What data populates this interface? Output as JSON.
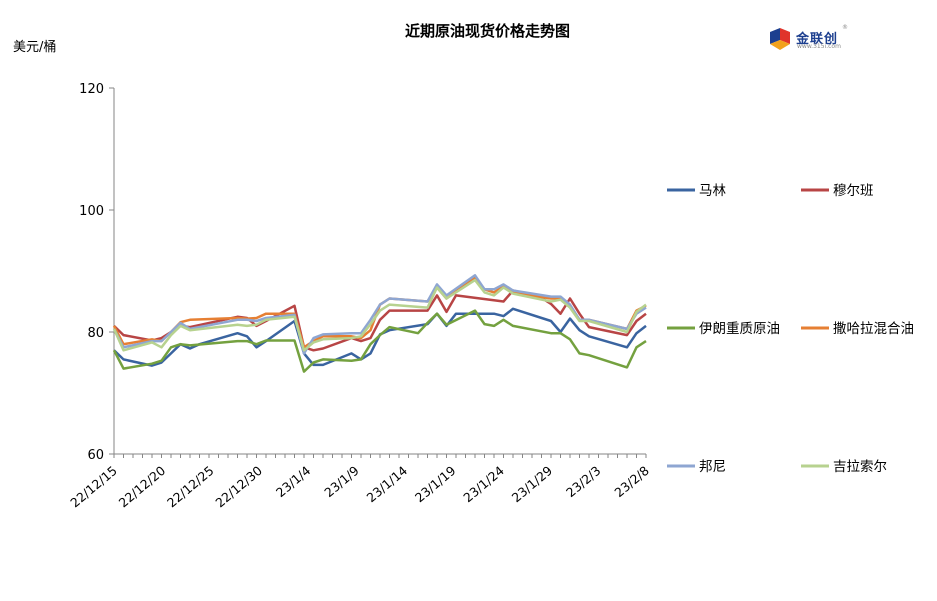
{
  "chart_data": {
    "type": "line",
    "title": "近期原油现货价格走势图",
    "ylabel": "美元/桶",
    "ylim": [
      60,
      120
    ],
    "yticks": [
      60,
      80,
      100,
      120
    ],
    "grid": false,
    "legend_placement": "right",
    "x_tick_labels": [
      "22/12/15",
      "22/12/20",
      "22/12/25",
      "22/12/30",
      "23/1/4",
      "23/1/9",
      "23/1/14",
      "23/1/19",
      "23/1/24",
      "23/1/29",
      "23/2/3",
      "23/2/8"
    ],
    "series": [
      {
        "name": "马林",
        "color": "#3a64a0",
        "values": [
          [
            0,
            77
          ],
          [
            1,
            75.5
          ],
          [
            4,
            74.5
          ],
          [
            5,
            75
          ],
          [
            6,
            76.5
          ],
          [
            7,
            78
          ],
          [
            8,
            77.3
          ],
          [
            9,
            78
          ],
          [
            13,
            79.8
          ],
          [
            14,
            79.3
          ],
          [
            15,
            77.5
          ],
          [
            16,
            78.5
          ],
          [
            19,
            81.8
          ],
          [
            20,
            76.5
          ],
          [
            21,
            74.6
          ],
          [
            22,
            74.6
          ],
          [
            25,
            76.5
          ],
          [
            26,
            75.5
          ],
          [
            27,
            76.5
          ],
          [
            28,
            79.6
          ],
          [
            29,
            80.3
          ],
          [
            33,
            81.3
          ],
          [
            34,
            83
          ],
          [
            35,
            81
          ],
          [
            36,
            83
          ],
          [
            39,
            83
          ],
          [
            40,
            83
          ],
          [
            41,
            82.6
          ],
          [
            42,
            83.8
          ],
          [
            46,
            81.8
          ],
          [
            47,
            80
          ],
          [
            48,
            82.2
          ],
          [
            49,
            80.3
          ],
          [
            50,
            79.3
          ],
          [
            54,
            77.5
          ],
          [
            55,
            79.8
          ],
          [
            56,
            81
          ]
        ]
      },
      {
        "name": "穆尔班",
        "color": "#b84545",
        "values": [
          [
            0,
            81
          ],
          [
            1,
            79.5
          ],
          [
            4,
            78.6
          ],
          [
            5,
            79
          ],
          [
            6,
            80
          ],
          [
            7,
            81
          ],
          [
            8,
            80.8
          ],
          [
            13,
            82.5
          ],
          [
            14,
            82.3
          ],
          [
            15,
            81
          ],
          [
            16,
            81.8
          ],
          [
            19,
            84.3
          ],
          [
            20,
            77.5
          ],
          [
            21,
            77
          ],
          [
            22,
            77.3
          ],
          [
            25,
            79
          ],
          [
            26,
            78.5
          ],
          [
            27,
            79
          ],
          [
            28,
            82
          ],
          [
            29,
            83.5
          ],
          [
            33,
            83.5
          ],
          [
            34,
            86
          ],
          [
            35,
            83.3
          ],
          [
            36,
            86
          ],
          [
            41,
            85
          ],
          [
            42,
            86.8
          ],
          [
            45,
            85.6
          ],
          [
            46,
            84.6
          ],
          [
            47,
            83
          ],
          [
            48,
            85.5
          ],
          [
            49,
            83
          ],
          [
            50,
            80.8
          ],
          [
            54,
            79.5
          ],
          [
            55,
            81.8
          ],
          [
            56,
            83
          ]
        ]
      },
      {
        "name": "伊朗重质原油",
        "color": "#74a13f",
        "values": [
          [
            0,
            77
          ],
          [
            1,
            74
          ],
          [
            4,
            74.8
          ],
          [
            5,
            75.3
          ],
          [
            6,
            77.5
          ],
          [
            7,
            78
          ],
          [
            8,
            77.8
          ],
          [
            13,
            78.5
          ],
          [
            14,
            78.5
          ],
          [
            15,
            78
          ],
          [
            16,
            78.6
          ],
          [
            19,
            78.6
          ],
          [
            20,
            73.5
          ],
          [
            21,
            75
          ],
          [
            22,
            75.5
          ],
          [
            25,
            75.3
          ],
          [
            26,
            75.5
          ],
          [
            27,
            78
          ],
          [
            28,
            79.5
          ],
          [
            29,
            80.8
          ],
          [
            32,
            79.8
          ],
          [
            33,
            81.5
          ],
          [
            34,
            83
          ],
          [
            35,
            81.2
          ],
          [
            38,
            83.5
          ],
          [
            39,
            81.3
          ],
          [
            40,
            81
          ],
          [
            41,
            82
          ],
          [
            42,
            81
          ],
          [
            46,
            79.8
          ],
          [
            47,
            79.8
          ],
          [
            48,
            78.8
          ],
          [
            49,
            76.5
          ],
          [
            50,
            76.2
          ],
          [
            54,
            74.2
          ],
          [
            55,
            77.5
          ],
          [
            56,
            78.5
          ]
        ]
      },
      {
        "name": "撒哈拉混合油",
        "color": "#e67f33",
        "values": [
          [
            0,
            81
          ],
          [
            1,
            78
          ],
          [
            4,
            78.8
          ],
          [
            5,
            78.5
          ],
          [
            6,
            80
          ],
          [
            7,
            81.6
          ],
          [
            8,
            82
          ],
          [
            13,
            82.3
          ],
          [
            14,
            82.2
          ],
          [
            15,
            82.3
          ],
          [
            16,
            83
          ],
          [
            19,
            83
          ],
          [
            20,
            77.5
          ],
          [
            21,
            78.5
          ],
          [
            22,
            79.3
          ],
          [
            25,
            79.3
          ],
          [
            26,
            79
          ],
          [
            27,
            80.3
          ],
          [
            28,
            84.5
          ],
          [
            29,
            85.5
          ],
          [
            33,
            85
          ],
          [
            34,
            87.3
          ],
          [
            35,
            85.5
          ],
          [
            38,
            89
          ],
          [
            39,
            87
          ],
          [
            40,
            86.5
          ],
          [
            41,
            87.5
          ],
          [
            42,
            86.5
          ],
          [
            46,
            85.5
          ],
          [
            47,
            85.5
          ],
          [
            48,
            84.3
          ],
          [
            49,
            82
          ],
          [
            50,
            82
          ],
          [
            54,
            80.5
          ],
          [
            55,
            83.5
          ],
          [
            56,
            84.3
          ]
        ]
      },
      {
        "name": "邦尼",
        "color": "#8ea6d2",
        "values": [
          [
            0,
            80.5
          ],
          [
            1,
            77.5
          ],
          [
            4,
            78.5
          ],
          [
            5,
            78.5
          ],
          [
            6,
            80
          ],
          [
            7,
            81.5
          ],
          [
            8,
            80.5
          ],
          [
            13,
            82
          ],
          [
            14,
            82
          ],
          [
            15,
            81.8
          ],
          [
            16,
            82.3
          ],
          [
            19,
            82.8
          ],
          [
            20,
            76.5
          ],
          [
            21,
            79
          ],
          [
            22,
            79.6
          ],
          [
            25,
            79.8
          ],
          [
            26,
            79.8
          ],
          [
            27,
            82
          ],
          [
            28,
            84.5
          ],
          [
            29,
            85.5
          ],
          [
            33,
            85
          ],
          [
            34,
            87.8
          ],
          [
            35,
            86
          ],
          [
            38,
            89.3
          ],
          [
            39,
            87
          ],
          [
            40,
            87
          ],
          [
            41,
            87.8
          ],
          [
            42,
            86.8
          ],
          [
            46,
            85.8
          ],
          [
            47,
            85.8
          ],
          [
            48,
            84.5
          ],
          [
            49,
            82
          ],
          [
            50,
            82
          ],
          [
            54,
            80.5
          ],
          [
            55,
            83
          ],
          [
            56,
            84
          ]
        ]
      },
      {
        "name": "吉拉索尔",
        "color": "#b7d28f",
        "values": [
          [
            0,
            80.5
          ],
          [
            1,
            77
          ],
          [
            4,
            78.3
          ],
          [
            5,
            77.5
          ],
          [
            6,
            79.5
          ],
          [
            7,
            81
          ],
          [
            8,
            80.3
          ],
          [
            13,
            81.2
          ],
          [
            14,
            81
          ],
          [
            15,
            81.2
          ],
          [
            16,
            82
          ],
          [
            19,
            82.5
          ],
          [
            20,
            77
          ],
          [
            21,
            78.3
          ],
          [
            22,
            78.8
          ],
          [
            25,
            79
          ],
          [
            26,
            79.3
          ],
          [
            27,
            81.3
          ],
          [
            28,
            83.5
          ],
          [
            29,
            84.5
          ],
          [
            33,
            84
          ],
          [
            34,
            87.3
          ],
          [
            35,
            85.5
          ],
          [
            38,
            88.5
          ],
          [
            39,
            86.5
          ],
          [
            40,
            86
          ],
          [
            41,
            87.3
          ],
          [
            42,
            86.3
          ],
          [
            46,
            85
          ],
          [
            47,
            85.3
          ],
          [
            48,
            84
          ],
          [
            49,
            81.8
          ],
          [
            50,
            81.8
          ],
          [
            54,
            80
          ],
          [
            55,
            83.3
          ],
          [
            56,
            84.5
          ]
        ]
      }
    ],
    "brand": {
      "logo_text": "金联创",
      "logo_sub": "www.315i.com",
      "logo_reg": "®"
    }
  }
}
